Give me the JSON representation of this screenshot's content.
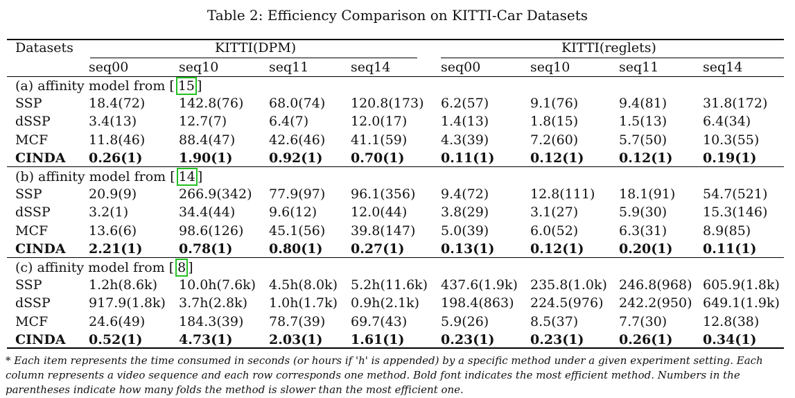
{
  "caption": "Table 2: Efficiency Comparison on KITTI-Car Datasets",
  "header": {
    "datasets_label": "Datasets",
    "group_dpm": "KITTI(DPM)",
    "group_reglets": "KITTI(reglets)",
    "sequences": [
      "seq00",
      "seq10",
      "seq11",
      "seq14",
      "seq00",
      "seq10",
      "seq11",
      "seq14"
    ]
  },
  "sections": [
    {
      "title": "(a) affinity model from [",
      "ref": "15",
      "close": "]",
      "rows": [
        {
          "method": "SSP",
          "values": [
            "18.4(72)",
            "142.8(76)",
            "68.0(74)",
            "120.8(173)",
            "6.2(57)",
            "9.1(76)",
            "9.4(81)",
            "31.8(172)"
          ]
        },
        {
          "method": "dSSP",
          "values": [
            "3.4(13)",
            "12.7(7)",
            "6.4(7)",
            "12.0(17)",
            "1.4(13)",
            "1.8(15)",
            "1.5(13)",
            "6.4(34)"
          ]
        },
        {
          "method": "MCF",
          "values": [
            "11.8(46)",
            "88.4(47)",
            "42.6(46)",
            "41.1(59)",
            "4.3(39)",
            "7.2(60)",
            "5.7(50)",
            "10.3(55)"
          ]
        },
        {
          "method": "CINDA",
          "values": [
            "0.26(1)",
            "1.90(1)",
            "0.92(1)",
            "0.70(1)",
            "0.11(1)",
            "0.12(1)",
            "0.12(1)",
            "0.19(1)"
          ]
        }
      ]
    },
    {
      "title": "(b) affinity model from [",
      "ref": "14",
      "close": "]",
      "rows": [
        {
          "method": "SSP",
          "values": [
            "20.9(9)",
            "266.9(342)",
            "77.9(97)",
            "96.1(356)",
            "9.4(72)",
            "12.8(111)",
            "18.1(91)",
            "54.7(521)"
          ]
        },
        {
          "method": "dSSP",
          "values": [
            "3.2(1)",
            "34.4(44)",
            "9.6(12)",
            "12.0(44)",
            "3.8(29)",
            "3.1(27)",
            "5.9(30)",
            "15.3(146)"
          ]
        },
        {
          "method": "MCF",
          "values": [
            "13.6(6)",
            "98.6(126)",
            "45.1(56)",
            "39.8(147)",
            "5.0(39)",
            "6.0(52)",
            "6.3(31)",
            "8.9(85)"
          ]
        },
        {
          "method": "CINDA",
          "values": [
            "2.21(1)",
            "0.78(1)",
            "0.80(1)",
            "0.27(1)",
            "0.13(1)",
            "0.12(1)",
            "0.20(1)",
            "0.11(1)"
          ]
        }
      ]
    },
    {
      "title": "(c) affinity model from [",
      "ref": "8",
      "close": "]",
      "rows": [
        {
          "method": "SSP",
          "values": [
            "1.2h(8.6k)",
            "10.0h(7.6k)",
            "4.5h(8.0k)",
            "5.2h(11.6k)",
            "437.6(1.9k)",
            "235.8(1.0k)",
            "246.8(968)",
            "605.9(1.8k)"
          ]
        },
        {
          "method": "dSSP",
          "values": [
            "917.9(1.8k)",
            "3.7h(2.8k)",
            "1.0h(1.7k)",
            "0.9h(2.1k)",
            "198.4(863)",
            "224.5(976)",
            "242.2(950)",
            "649.1(1.9k)"
          ]
        },
        {
          "method": "MCF",
          "values": [
            "24.6(49)",
            "184.3(39)",
            "78.7(39)",
            "69.7(43)",
            "5.9(26)",
            "8.5(37)",
            "7.7(30)",
            "12.8(38)"
          ]
        },
        {
          "method": "CINDA",
          "values": [
            "0.52(1)",
            "4.73(1)",
            "2.03(1)",
            "1.61(1)",
            "0.23(1)",
            "0.23(1)",
            "0.26(1)",
            "0.34(1)"
          ]
        }
      ]
    }
  ],
  "note": "* Each item represents the time consumed in seconds (or hours if 'h' is appended) by a specific method under a given experiment setting. Each column represents a video sequence and each row corresponds one method. Bold font indicates the most efficient method. Numbers in the parentheses indicate how many folds the method is slower than the most efficient one."
}
